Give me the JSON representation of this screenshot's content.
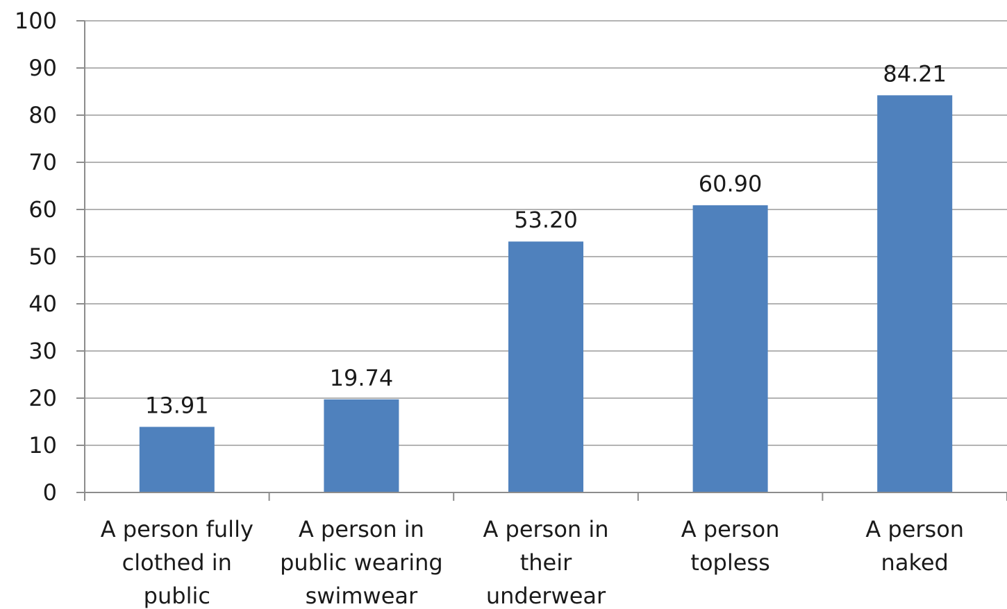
{
  "chart_data": {
    "type": "bar",
    "categories": [
      [
        "A person fully",
        "clothed in",
        "public"
      ],
      [
        "A person in",
        "public wearing",
        "swimwear"
      ],
      [
        "A person in",
        "their",
        "underwear"
      ],
      [
        "A person",
        "topless"
      ],
      [
        "A person",
        "naked"
      ]
    ],
    "values": [
      13.91,
      19.74,
      53.2,
      60.9,
      84.21
    ],
    "data_labels": [
      "13.91",
      "19.74",
      "53.20",
      "60.90",
      "84.21"
    ],
    "ylim": [
      0,
      100
    ],
    "yticks": [
      0,
      10,
      20,
      30,
      40,
      50,
      60,
      70,
      80,
      90,
      100
    ],
    "grid": true,
    "legend": "none",
    "bar_color": "#4f81bd"
  }
}
